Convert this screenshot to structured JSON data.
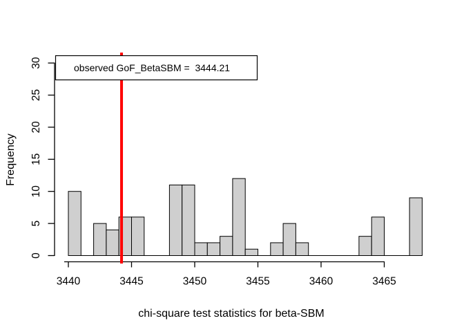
{
  "chart_data": {
    "type": "bar",
    "subtype": "histogram",
    "title": "",
    "xlabel": "chi-square test statistics for beta-SBM",
    "ylabel": "Frequency",
    "bin_start": 3440,
    "bin_width": 1,
    "counts": [
      10,
      0,
      5,
      4,
      6,
      6,
      0,
      0,
      11,
      11,
      2,
      2,
      3,
      12,
      1,
      0,
      2,
      5,
      2,
      0,
      0,
      0,
      0,
      3,
      6,
      0,
      0,
      9
    ],
    "xlim": [
      3440,
      3468
    ],
    "ylim": [
      0,
      30
    ],
    "x_ticks": [
      3440,
      3445,
      3450,
      3455,
      3460,
      3465
    ],
    "y_ticks": [
      0,
      5,
      10,
      15,
      20,
      25,
      30
    ],
    "grid": "off",
    "legend_position": "top-left",
    "legend_label": "observed GoF_BetaSBM =  3444.21",
    "observed_value": 3444.21,
    "observed_line_color": "#ff0000",
    "bar_fill": "#cfcfcf",
    "bar_stroke": "#000000",
    "axis_color": "#000000",
    "background_color": "#ffffff"
  }
}
